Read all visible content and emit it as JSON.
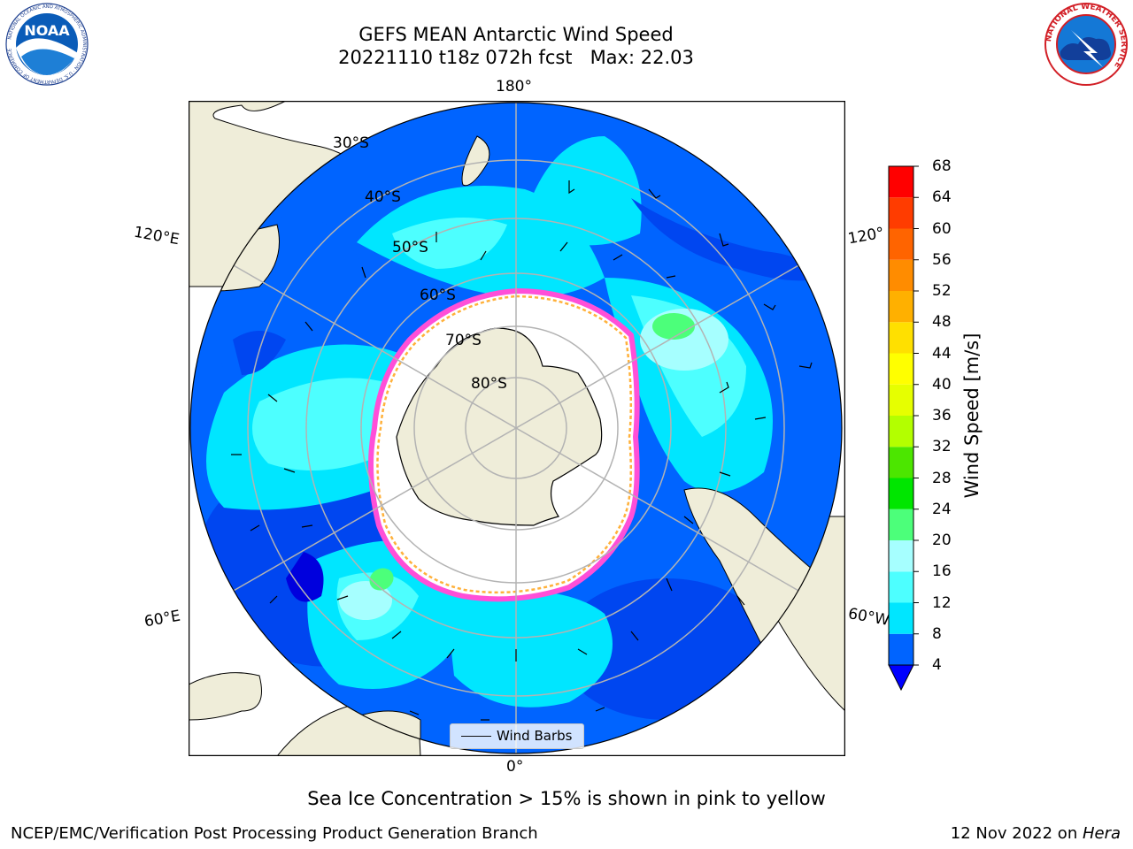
{
  "title": {
    "line1": "GEFS MEAN Antarctic Wind Speed",
    "line2": "20221110 t18z 072h fcst   Max: 22.03"
  },
  "logos": {
    "noaa_text": "NOAA",
    "noaa_ring": "NATIONAL OCEANIC AND ATMOSPHERIC ADMINISTRATION · U.S. DEPARTMENT OF COMMERCE",
    "nws_ring": "NATIONAL WEATHER SERVICE"
  },
  "map": {
    "projection": "south-polar stereographic",
    "longitude_labels": {
      "top": "180°",
      "upper_left": "120°E",
      "upper_right": "120°",
      "lower_left": "60°E",
      "lower_right": "60°W",
      "bottom": "0°"
    },
    "latitude_labels": [
      "30°S",
      "40°S",
      "50°S",
      "60°S",
      "70°S",
      "80°S"
    ],
    "legend": {
      "label": "Wind Barbs"
    },
    "colors": {
      "land": "#efedd9",
      "sea_ice": "#ffffff",
      "sea_ice_edge": [
        "#ff4fd8",
        "#ffb13b",
        "#f6e04a"
      ],
      "graticule": "#b3b3b3"
    }
  },
  "colorbar": {
    "title": "Wind Speed [m/s]",
    "ticks": [
      "4",
      "8",
      "12",
      "16",
      "20",
      "24",
      "28",
      "32",
      "36",
      "40",
      "44",
      "48",
      "52",
      "56",
      "60",
      "64",
      "68"
    ],
    "colors": [
      "#0064ff",
      "#00e6ff",
      "#4dffff",
      "#a6ffff",
      "#4cff7a",
      "#00e600",
      "#4ce600",
      "#b3ff00",
      "#e6ff00",
      "#ffff00",
      "#ffe000",
      "#ffb000",
      "#ff8c00",
      "#ff6400",
      "#ff3c00",
      "#ff0000"
    ],
    "extend_color": "#0000ff"
  },
  "chart_data": {
    "type": "heatmap",
    "title": "GEFS MEAN Antarctic Wind Speed",
    "subtitle": "20221110 t18z 072h fcst   Max: 22.03",
    "variable": "Wind Speed [m/s]",
    "max_value": 22.03,
    "colorbar_range": [
      4,
      68
    ],
    "colorbar_interval": 4,
    "extend": "min",
    "overlay": "Wind Barbs",
    "sea_ice_note": "Sea Ice Concentration > 15% is shown in pink to yellow"
  },
  "caption": "Sea Ice Concentration > 15% is shown in pink to yellow",
  "footer": {
    "left": "NCEP/EMC/Verification Post Processing Product Generation Branch",
    "right_date": "12 Nov 2022 on ",
    "right_host": "Hera"
  }
}
